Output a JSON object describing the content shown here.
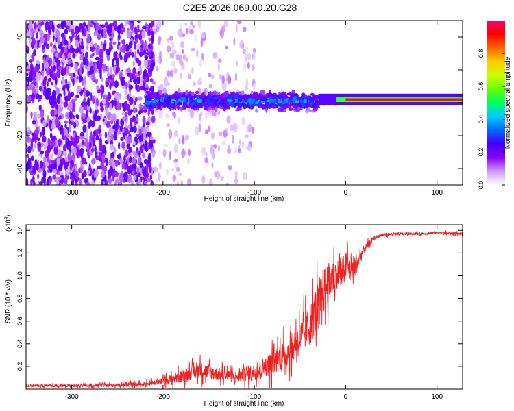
{
  "figure_title": "C2E5.2026.069.00.20.G28",
  "chart_data": [
    {
      "type": "heatmap",
      "xlabel": "Height of straight line (km)",
      "ylabel": "Frequency (Hz)",
      "xlim": [
        -350,
        128
      ],
      "ylim": [
        -50,
        50
      ],
      "xticks": [
        -300,
        -200,
        -100,
        0,
        100
      ],
      "yticks": [
        -40,
        -20,
        0,
        20,
        40
      ],
      "grid": false,
      "colorbar": {
        "label": "Normalized spectral amplitude",
        "range": [
          0,
          1
        ],
        "ticks": [
          0.0,
          0.2,
          0.4,
          0.6,
          0.8
        ],
        "colormap": [
          "#ffffff",
          "#cc99ff",
          "#8800ff",
          "#4400ff",
          "#0066ff",
          "#00ccff",
          "#00ff66",
          "#66ff00",
          "#ccff00",
          "#ffcc00",
          "#ff6600",
          "#ff0000",
          "#ff0066"
        ]
      },
      "regions": [
        {
          "name": "noise",
          "x_from": -350,
          "x_to": -210,
          "y_center": 0,
          "y_spread": 50,
          "amplitude_max": 0.25
        },
        {
          "name": "sparse-noise",
          "x_from": -210,
          "x_to": -100,
          "y_center": 0,
          "y_spread": 50,
          "amplitude_max": 0.12
        },
        {
          "name": "signal-band",
          "x_from": -220,
          "x_to": -30,
          "y_center": 1,
          "y_spread": 6,
          "amplitude_max": 0.45
        },
        {
          "name": "signal-transition",
          "x_from": -30,
          "x_to": 0,
          "y_center": 2,
          "y_spread": 3,
          "amplitude_max": 0.9
        },
        {
          "name": "signal-line",
          "x_from": 0,
          "x_to": 128,
          "y_center": 2,
          "y_spread": 2,
          "amplitude_max": 0.95
        }
      ]
    },
    {
      "type": "line",
      "xlabel": "Height of straight line (km)",
      "ylabel": "SNR (10 * v/v)",
      "y_multiplier_label": "(x10",
      "y_multiplier_exponent": "4",
      "y_multiplier_close": ")",
      "xlim": [
        -350,
        128
      ],
      "ylim": [
        0,
        14500
      ],
      "xticks": [
        -300,
        -200,
        -100,
        0,
        100
      ],
      "yticks": [
        2000,
        4000,
        6000,
        8000,
        10000,
        12000,
        14000
      ],
      "ytick_labels": [
        "0.2",
        "0.4",
        "0.6",
        "0.8",
        "1.0",
        "1.2",
        "1.4"
      ],
      "color": "#ee2222",
      "series": [
        {
          "name": "SNR",
          "x": [
            -350,
            -300,
            -250,
            -220,
            -200,
            -180,
            -160,
            -140,
            -120,
            -100,
            -80,
            -60,
            -50,
            -40,
            -30,
            -25,
            -20,
            -15,
            -10,
            -5,
            0,
            5,
            10,
            15,
            20,
            30,
            40,
            60,
            80,
            100,
            128
          ],
          "y": [
            300,
            300,
            350,
            450,
            700,
            1100,
            1700,
            1300,
            1100,
            1500,
            2300,
            3500,
            4500,
            5500,
            7500,
            8500,
            9200,
            9700,
            10200,
            10000,
            10800,
            10500,
            10800,
            11500,
            12300,
            13300,
            13600,
            13700,
            13700,
            13800,
            13700
          ],
          "noise_amplitude": [
            200,
            200,
            250,
            300,
            500,
            900,
            1200,
            1000,
            900,
            1200,
            1800,
            2200,
            2500,
            3000,
            3500,
            3500,
            3200,
            2600,
            2200,
            2400,
            2300,
            2000,
            1800,
            1200,
            600,
            300,
            250,
            200,
            200,
            200,
            200
          ]
        }
      ]
    }
  ]
}
